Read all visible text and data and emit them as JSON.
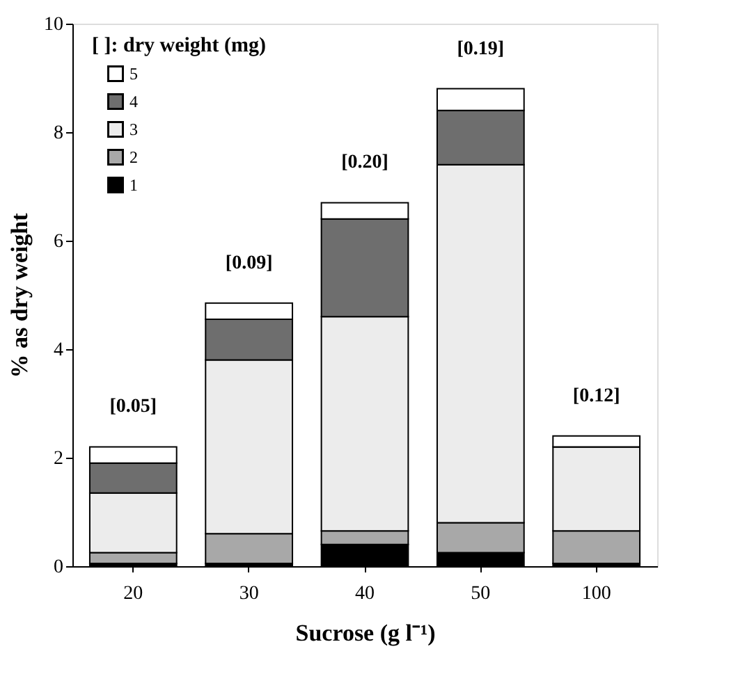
{
  "chart_data": {
    "type": "bar",
    "stacked": true,
    "xlabel": "Sucrose (g l⁻¹)",
    "ylabel": "% as dry weight",
    "categories": [
      "20",
      "30",
      "40",
      "50",
      "100"
    ],
    "series": [
      {
        "name": "1",
        "color": "#000000",
        "values": [
          0.05,
          0.05,
          0.4,
          0.25,
          0.05
        ]
      },
      {
        "name": "2",
        "color": "#a8a8a8",
        "values": [
          0.2,
          0.55,
          0.25,
          0.55,
          0.6
        ]
      },
      {
        "name": "3",
        "color": "#ececec",
        "values": [
          1.1,
          3.2,
          3.95,
          6.6,
          1.55
        ]
      },
      {
        "name": "4",
        "color": "#6e6e6e",
        "values": [
          0.55,
          0.75,
          1.8,
          1.0,
          0
        ]
      },
      {
        "name": "5",
        "color": "#ffffff",
        "values": [
          0.3,
          0.3,
          0.3,
          0.4,
          0.2
        ]
      }
    ],
    "ylim": [
      0,
      10
    ],
    "yticks": [
      0,
      2,
      4,
      6,
      8,
      10
    ],
    "grid": false,
    "legend": "top left",
    "annotations": [
      "[ ]: dry weight (mg)",
      {
        "text": "[0.05]",
        "x": "20",
        "y": 2.2
      },
      {
        "text": "[0.09]",
        "x": "30",
        "y": 4.85
      },
      {
        "text": "[0.20]",
        "x": "40",
        "y": 6.7
      },
      {
        "text": "[0.19]",
        "x": "50",
        "y": 8.8
      },
      {
        "text": "[0.12]",
        "x": "100",
        "y": 2.4
      }
    ]
  }
}
